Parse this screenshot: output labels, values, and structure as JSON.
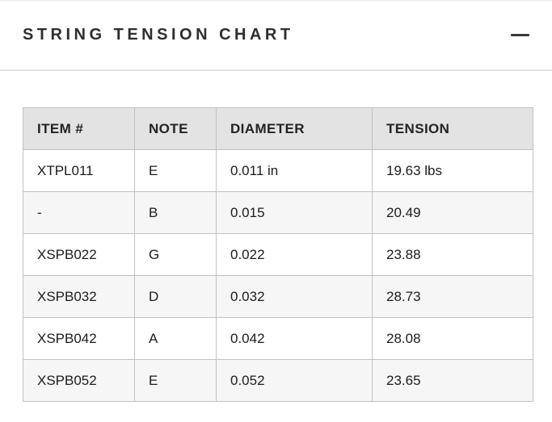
{
  "accordion": {
    "title": "STRING TENSION CHART",
    "collapse_icon": "minus-icon"
  },
  "table": {
    "columns": [
      "ITEM #",
      "NOTE",
      "DIAMETER",
      "TENSION"
    ],
    "rows": [
      [
        "XTPL011",
        "E",
        "0.011 in",
        "19.63 lbs"
      ],
      [
        "-",
        "B",
        "0.015",
        "20.49"
      ],
      [
        "XSPB022",
        "G",
        "0.022",
        "23.88"
      ],
      [
        "XSPB032",
        "D",
        "0.032",
        "28.73"
      ],
      [
        "XSPB042",
        "A",
        "0.042",
        "28.08"
      ],
      [
        "XSPB052",
        "E",
        "0.052",
        "23.65"
      ]
    ]
  },
  "colors": {
    "header_bg": "#e3e3e3",
    "stripe_bg": "#f6f6f6",
    "table_border": "#c1c1c1",
    "divider": "#e3e3e3",
    "title_text": "#2d2d32",
    "cell_text": "#1b1b1b"
  }
}
